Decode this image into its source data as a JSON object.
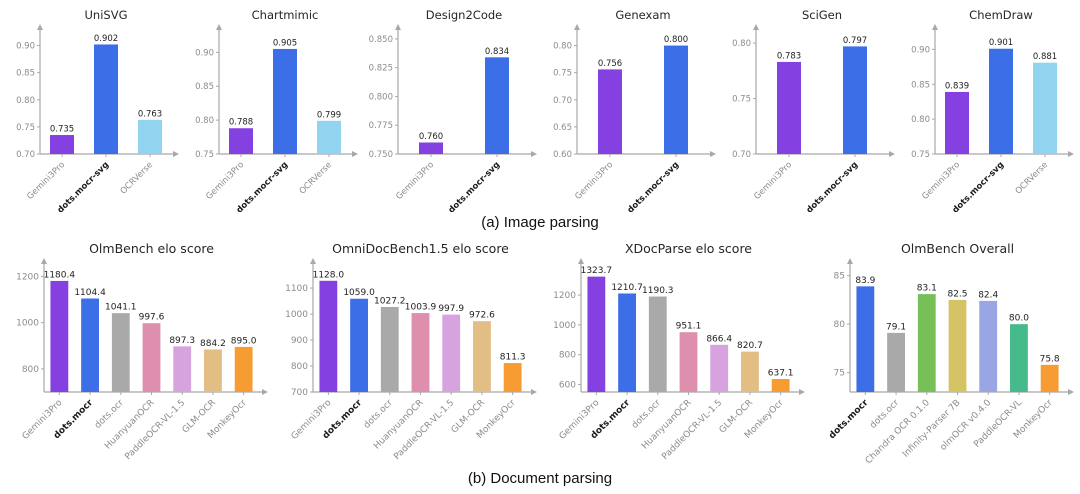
{
  "figure": {
    "caption_a": "(a) Image parsing",
    "caption_b": "(b) Document parsing"
  },
  "style": {
    "axis_color": "#a8a8a8",
    "tick_label_color": "#8c8c8c",
    "bold_label_color": "#1a1a1a",
    "value_label_color": "#222222",
    "title_color": "#262626"
  },
  "chart_data": [
    {
      "type": "bar",
      "row": "a",
      "title": "UniSVG",
      "categories": [
        "Gemini3Pro",
        "dots.mocr-svg",
        "OCRVerse"
      ],
      "values": [
        0.735,
        0.902,
        0.763
      ],
      "value_labels": [
        "0.735",
        "0.902",
        "0.763"
      ],
      "colors": [
        "#8440e0",
        "#3c6ee8",
        "#92d4f0"
      ],
      "ylim": [
        0.7,
        0.925
      ],
      "yticks": [
        0.7,
        0.75,
        0.8,
        0.85,
        0.9
      ],
      "ytick_labels": [
        "0.70",
        "0.75",
        "0.80",
        "0.85",
        "0.90"
      ],
      "bold_categories": [
        "dots.mocr-svg"
      ]
    },
    {
      "type": "bar",
      "row": "a",
      "title": "Chartmimic",
      "categories": [
        "Gemini3Pro",
        "dots.mocr-svg",
        "OCRVerse"
      ],
      "values": [
        0.788,
        0.905,
        0.799
      ],
      "value_labels": [
        "0.788",
        "0.905",
        "0.799"
      ],
      "colors": [
        "#8440e0",
        "#3c6ee8",
        "#92d4f0"
      ],
      "ylim": [
        0.75,
        0.93
      ],
      "yticks": [
        0.75,
        0.8,
        0.85,
        0.9
      ],
      "ytick_labels": [
        "0.75",
        "0.80",
        "0.85",
        "0.90"
      ],
      "bold_categories": [
        "dots.mocr-svg"
      ]
    },
    {
      "type": "bar",
      "row": "a",
      "title": "Design2Code",
      "categories": [
        "Gemini3Pro",
        "dots.mocr-svg"
      ],
      "values": [
        0.76,
        0.834
      ],
      "value_labels": [
        "0.760",
        "0.834"
      ],
      "colors": [
        "#8440e0",
        "#3c6ee8"
      ],
      "ylim": [
        0.75,
        0.856
      ],
      "yticks": [
        0.75,
        0.775,
        0.8,
        0.825,
        0.85
      ],
      "ytick_labels": [
        "0.750",
        "0.775",
        "0.800",
        "0.825",
        "0.850"
      ],
      "bold_categories": [
        "dots.mocr-svg"
      ]
    },
    {
      "type": "bar",
      "row": "a",
      "title": "Genexam",
      "categories": [
        "Gemini3Pro",
        "dots.mocr-svg"
      ],
      "values": [
        0.756,
        0.8
      ],
      "value_labels": [
        "0.756",
        "0.800"
      ],
      "colors": [
        "#8440e0",
        "#3c6ee8"
      ],
      "ylim": [
        0.6,
        0.825
      ],
      "yticks": [
        0.6,
        0.65,
        0.7,
        0.75,
        0.8
      ],
      "ytick_labels": [
        "0.60",
        "0.65",
        "0.70",
        "0.75",
        "0.80"
      ],
      "bold_categories": [
        "dots.mocr-svg"
      ]
    },
    {
      "type": "bar",
      "row": "a",
      "title": "SciGen",
      "categories": [
        "Gemini3Pro",
        "dots.mocr-svg"
      ],
      "values": [
        0.783,
        0.797
      ],
      "value_labels": [
        "0.783",
        "0.797"
      ],
      "colors": [
        "#8440e0",
        "#3c6ee8"
      ],
      "ylim": [
        0.7,
        0.81
      ],
      "yticks": [
        0.7,
        0.75,
        0.8
      ],
      "ytick_labels": [
        "0.70",
        "0.75",
        "0.80"
      ],
      "bold_categories": [
        "dots.mocr-svg"
      ]
    },
    {
      "type": "bar",
      "row": "a",
      "title": "ChemDraw",
      "categories": [
        "Gemini3Pro",
        "dots.mocr-svg",
        "OCRVerse"
      ],
      "values": [
        0.839,
        0.901,
        0.881
      ],
      "value_labels": [
        "0.839",
        "0.901",
        "0.881"
      ],
      "colors": [
        "#8440e0",
        "#3c6ee8",
        "#92d4f0"
      ],
      "ylim": [
        0.75,
        0.925
      ],
      "yticks": [
        0.75,
        0.8,
        0.85,
        0.9
      ],
      "ytick_labels": [
        "0.75",
        "0.80",
        "0.85",
        "0.90"
      ],
      "bold_categories": [
        "dots.mocr-svg"
      ]
    },
    {
      "type": "bar",
      "row": "b",
      "title": "OlmBench elo score",
      "categories": [
        "Gemini3Pro",
        "dots.mocr",
        "dots.ocr",
        "HuanyuanOCR",
        "PaddleOCR-VL-1.5",
        "GLM-OCR",
        "MonkeyOcr"
      ],
      "values": [
        1180.4,
        1104.4,
        1041.1,
        997.6,
        897.3,
        884.2,
        895.0
      ],
      "value_labels": [
        "1180.4",
        "1104.4",
        "1041.1",
        "997.6",
        "897.3",
        "884.2",
        "895.0"
      ],
      "colors": [
        "#8440e0",
        "#3c6ee8",
        "#a9a9a9",
        "#de8fae",
        "#d6a3de",
        "#e2be85",
        "#f69c33"
      ],
      "ylim": [
        700,
        1245
      ],
      "yticks": [
        800,
        1000,
        1200
      ],
      "ytick_labels": [
        "800",
        "1000",
        "1200"
      ],
      "bold_categories": [
        "dots.mocr"
      ]
    },
    {
      "type": "bar",
      "row": "b",
      "title": "OmniDocBench1.5 elo score",
      "categories": [
        "Gemini3Pro",
        "dots.mocr",
        "dots.ocr",
        "HuanyuanOCR",
        "PaddleOCR-VL-1.5",
        "GLM-OCR",
        "MonkeyOcr"
      ],
      "values": [
        1128.0,
        1059.0,
        1027.2,
        1003.9,
        997.9,
        972.6,
        811.3
      ],
      "value_labels": [
        "1128.0",
        "1059.0",
        "1027.2",
        "1003.9",
        "997.9",
        "972.6",
        "811.3"
      ],
      "colors": [
        "#8440e0",
        "#3c6ee8",
        "#a9a9a9",
        "#de8fae",
        "#d6a3de",
        "#e2be85",
        "#f69c33"
      ],
      "ylim": [
        700,
        1185
      ],
      "yticks": [
        700,
        800,
        900,
        1000,
        1100
      ],
      "ytick_labels": [
        "700",
        "800",
        "900",
        "1000",
        "1100"
      ],
      "bold_categories": [
        "dots.mocr"
      ]
    },
    {
      "type": "bar",
      "row": "b",
      "title": "XDocParse elo score",
      "categories": [
        "Gemini3Pro",
        "dots.mocr",
        "dots.ocr",
        "HuanyuanOCR",
        "PaddleOCR-VL-1.5",
        "GLM-OCR",
        "MonkeyOcr"
      ],
      "values": [
        1323.7,
        1210.7,
        1190.3,
        951.1,
        866.4,
        820.7,
        637.1
      ],
      "value_labels": [
        "1323.7",
        "1210.7",
        "1190.3",
        "951.1",
        "866.4",
        "820.7",
        "637.1"
      ],
      "colors": [
        "#8440e0",
        "#3c6ee8",
        "#a9a9a9",
        "#de8fae",
        "#d6a3de",
        "#e2be85",
        "#f69c33"
      ],
      "ylim": [
        550,
        1395
      ],
      "yticks": [
        600,
        800,
        1000,
        1200
      ],
      "ytick_labels": [
        "600",
        "800",
        "1000",
        "1200"
      ],
      "bold_categories": [
        "dots.mocr"
      ]
    },
    {
      "type": "bar",
      "row": "b",
      "title": "OlmBench Overall",
      "categories": [
        "dots.mocr",
        "dots.ocr",
        "Chandra OCR 0.1.0",
        "Infinity-Parser 7B",
        "olmOCR v0.4.0",
        "PaddleOCR-VL",
        "MonkeyOcr"
      ],
      "values": [
        83.9,
        79.1,
        83.1,
        82.5,
        82.4,
        80.0,
        75.8
      ],
      "value_labels": [
        "83.9",
        "79.1",
        "83.1",
        "82.5",
        "82.4",
        "80.0",
        "75.8"
      ],
      "colors": [
        "#3c6ee8",
        "#a9a9a9",
        "#77c058",
        "#d4c466",
        "#9aa5e6",
        "#47ba8c",
        "#f69c33"
      ],
      "ylim": [
        73,
        86
      ],
      "yticks": [
        75,
        80,
        85
      ],
      "ytick_labels": [
        "75",
        "80",
        "85"
      ],
      "bold_categories": [
        "dots.mocr"
      ]
    }
  ]
}
